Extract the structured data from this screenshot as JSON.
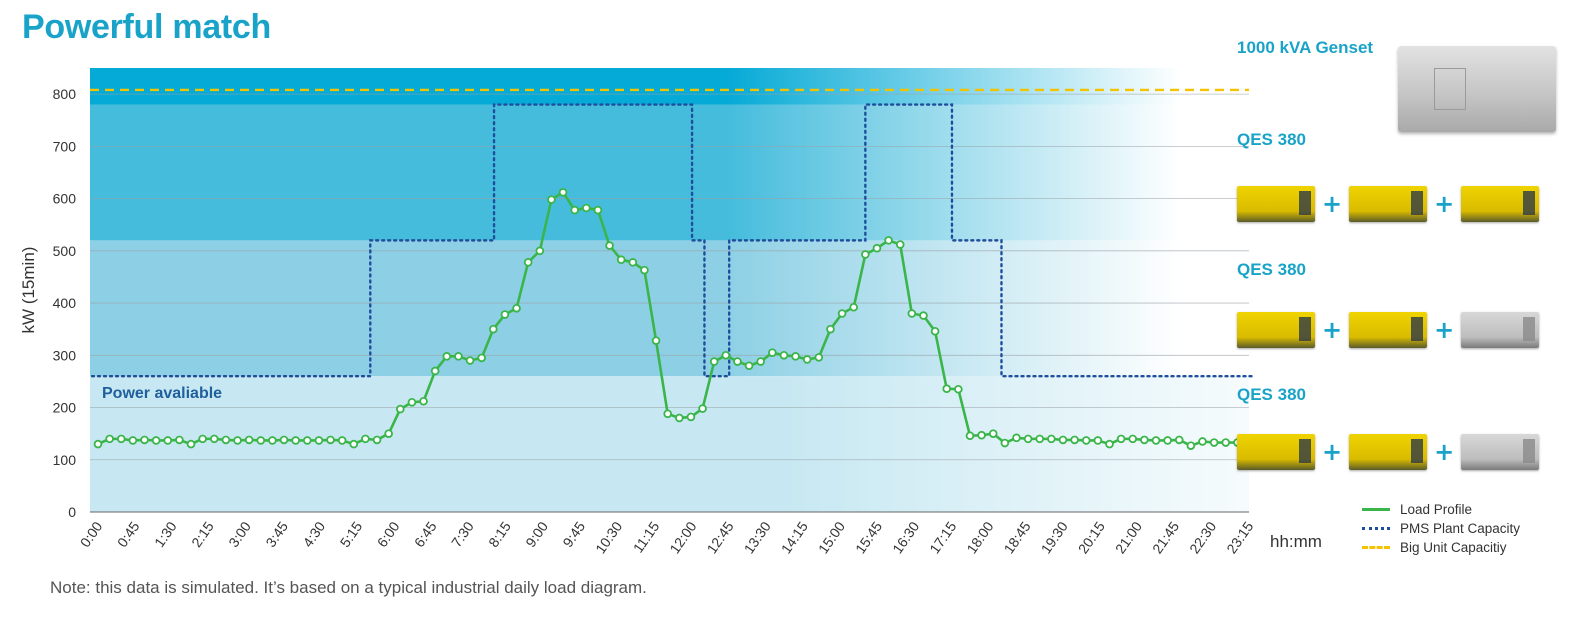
{
  "title": "Powerful match",
  "note": "Note: this data is simulated. It’s based on a typical industrial daily load diagram.",
  "units": {
    "big_unit_label": "1000 kVA Genset",
    "qes_label_top": "QES 380",
    "qes_label_mid": "QES 380",
    "qes_label_low": "QES 380",
    "plus_sign": "+"
  },
  "colors": {
    "accent": "#1aa3c8",
    "load_profile": "#3ab54a",
    "pms_capacity": "#1f4e9c",
    "big_unit": "#f3c200",
    "genset_active": "#e6c800",
    "genset_idle": "#bdbdbd"
  },
  "chart_data": {
    "type": "line",
    "ylabel": "kW (15min)",
    "xlabel": "hh:mm",
    "ylim": [
      0,
      850
    ],
    "yticks": [
      0,
      100,
      200,
      300,
      400,
      500,
      600,
      700,
      800
    ],
    "xticks": [
      "0:00",
      "0:45",
      "1:30",
      "2:15",
      "3:00",
      "3:45",
      "4:30",
      "5:15",
      "6:00",
      "6:45",
      "7:30",
      "8:15",
      "9:00",
      "9:45",
      "10:30",
      "11:15",
      "12:00",
      "12:45",
      "13:30",
      "14:15",
      "15:00",
      "15:45",
      "16:30",
      "17:15",
      "18:00",
      "18:45",
      "19:30",
      "20:15",
      "21:00",
      "21:45",
      "22:30",
      "23:15"
    ],
    "grid": true,
    "legend_position": "bottom-right",
    "annotation": "Power avaliable",
    "bands": [
      {
        "from": 0,
        "to": 260,
        "level": "one unit"
      },
      {
        "from": 260,
        "to": 520,
        "level": "two units"
      },
      {
        "from": 520,
        "to": 780,
        "level": "three units"
      },
      {
        "from": 780,
        "to": 850,
        "level": "big unit"
      }
    ],
    "series": [
      {
        "name": "Load Profile",
        "interval_minutes": 15,
        "values": [
          130,
          140,
          140,
          137,
          138,
          137,
          137,
          138,
          130,
          140,
          140,
          138,
          137,
          138,
          137,
          137,
          138,
          137,
          137,
          137,
          138,
          137,
          130,
          140,
          138,
          150,
          197,
          210,
          212,
          270,
          298,
          298,
          290,
          295,
          350,
          378,
          390,
          478,
          500,
          598,
          612,
          578,
          582,
          578,
          510,
          483,
          478,
          463,
          328,
          188,
          180,
          182,
          198,
          288,
          300,
          288,
          280,
          288,
          305,
          300,
          298,
          292,
          296,
          350,
          380,
          392,
          493,
          505,
          520,
          512,
          380,
          376,
          346,
          236,
          235,
          146,
          147,
          150,
          132,
          142,
          140,
          140,
          140,
          138,
          138,
          137,
          137,
          130,
          140,
          140,
          138,
          137,
          137,
          138,
          127,
          135,
          133,
          133,
          133,
          135
        ]
      },
      {
        "name": "PMS Plant Capacity",
        "steps": [
          {
            "from": "0:00",
            "to": "5:30",
            "value": 260
          },
          {
            "from": "5:30",
            "to": "8:00",
            "value": 520
          },
          {
            "from": "8:00",
            "to": "12:00",
            "value": 780
          },
          {
            "from": "12:00",
            "to": "12:15",
            "value": 520
          },
          {
            "from": "12:15",
            "to": "12:45",
            "value": 260
          },
          {
            "from": "12:45",
            "to": "15:30",
            "value": 520
          },
          {
            "from": "15:30",
            "to": "17:15",
            "value": 780
          },
          {
            "from": "17:15",
            "to": "18:15",
            "value": 520
          },
          {
            "from": "18:15",
            "to": "23:59",
            "value": 260
          }
        ]
      },
      {
        "name": "Big Unit Capacitiy",
        "value": 808
      }
    ]
  }
}
